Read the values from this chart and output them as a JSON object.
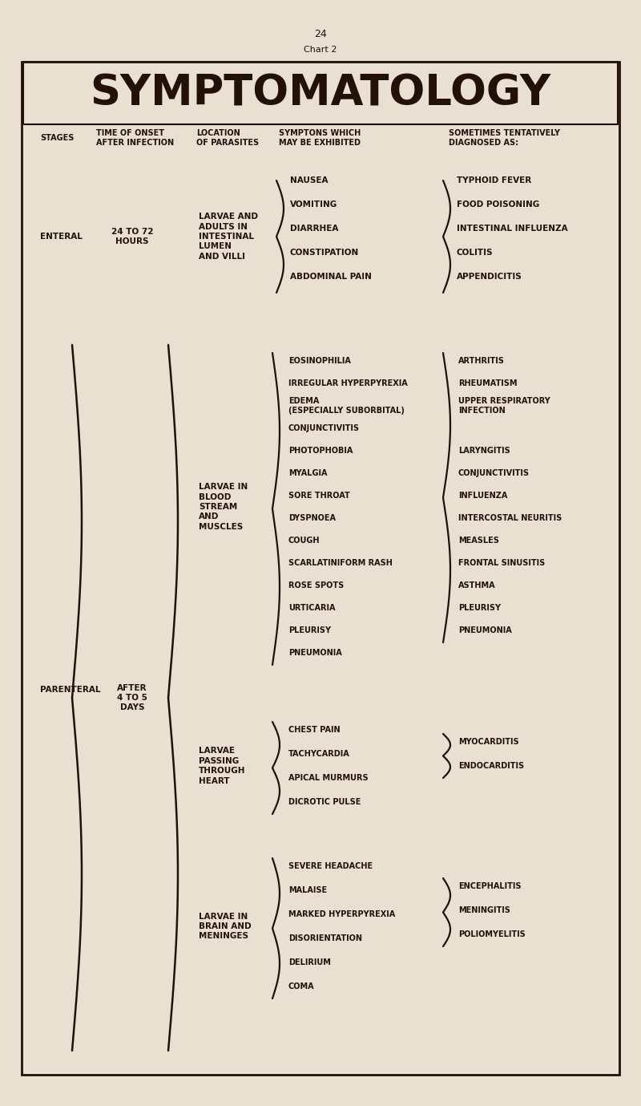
{
  "bg_color": "#e9e0d2",
  "text_color": "#231008",
  "page_num": "24",
  "chart_label": "Chart 2",
  "title": "SYMPTOMATOLOGY",
  "enteral_stage": "ENTERAL",
  "enteral_time": "24 TO 72\nHOURS",
  "enteral_location": "LARVAE AND\nADULTS IN\nINTESTINAL\nLUMEN\nAND VILLI",
  "enteral_symptoms": [
    "NAUSEA",
    "VOMITING",
    "DIARRHEA",
    "CONSTIPATION",
    "ABDOMINAL PAIN"
  ],
  "enteral_diagnoses": [
    "TYPHOID FEVER",
    "FOOD POISONING",
    "INTESTINAL INFLUENZA",
    "COLITIS",
    "APPENDICITIS"
  ],
  "parenteral_stage": "PARENTERAL",
  "parenteral_time": "AFTER\n4 TO 5\nDAYS",
  "sub1_location": "LARVAE IN\nBLOOD\nSTREAM\nAND\nMUSCLES",
  "sub1_symptoms": [
    "EOSINOPHILIA",
    "IRREGULAR HYPERPYREXIA",
    "EDEMA\n(ESPECIALLY SUBORBITAL)",
    "CONJUNCTIVITIS",
    "PHOTOPHOBIA",
    "MYALGIA",
    "SORE THROAT",
    "DYSPNOEA",
    "COUGH",
    "SCARLATINIFORM RASH",
    "ROSE SPOTS",
    "URTICARIA",
    "PLEURISY",
    "PNEUMONIA"
  ],
  "sub1_diagnoses": [
    "ARTHRITIS",
    "RHEUMATISM",
    "UPPER RESPIRATORY\nINFECTION",
    "LARYNGITIS",
    "CONJUNCTIVITIS",
    "INFLUENZA",
    "INTERCOSTAL NEURITIS",
    "MEASLES",
    "FRONTAL SINUSITIS",
    "ASTHMA",
    "PLEURISY",
    "PNEUMONIA"
  ],
  "sub2_location": "LARVAE\nPASSING\nTHROUGH\nHEART",
  "sub2_symptoms": [
    "CHEST PAIN",
    "TACHYCARDIA",
    "APICAL MURMURS",
    "DICROTIC PULSE"
  ],
  "sub2_diagnoses": [
    "MYOCARDITIS",
    "ENDOCARDITIS"
  ],
  "sub3_location": "LARVAE IN\nBRAIN AND\nMENINGES",
  "sub3_symptoms": [
    "SEVERE HEADACHE",
    "MALAISE",
    "MARKED HYPERPYREXIA",
    "DISORIENTATION",
    "DELIRIUM",
    "COMA"
  ],
  "sub3_diagnoses": [
    "ENCEPHALITIS",
    "MENINGITIS",
    "POLIOMYELITIS"
  ]
}
